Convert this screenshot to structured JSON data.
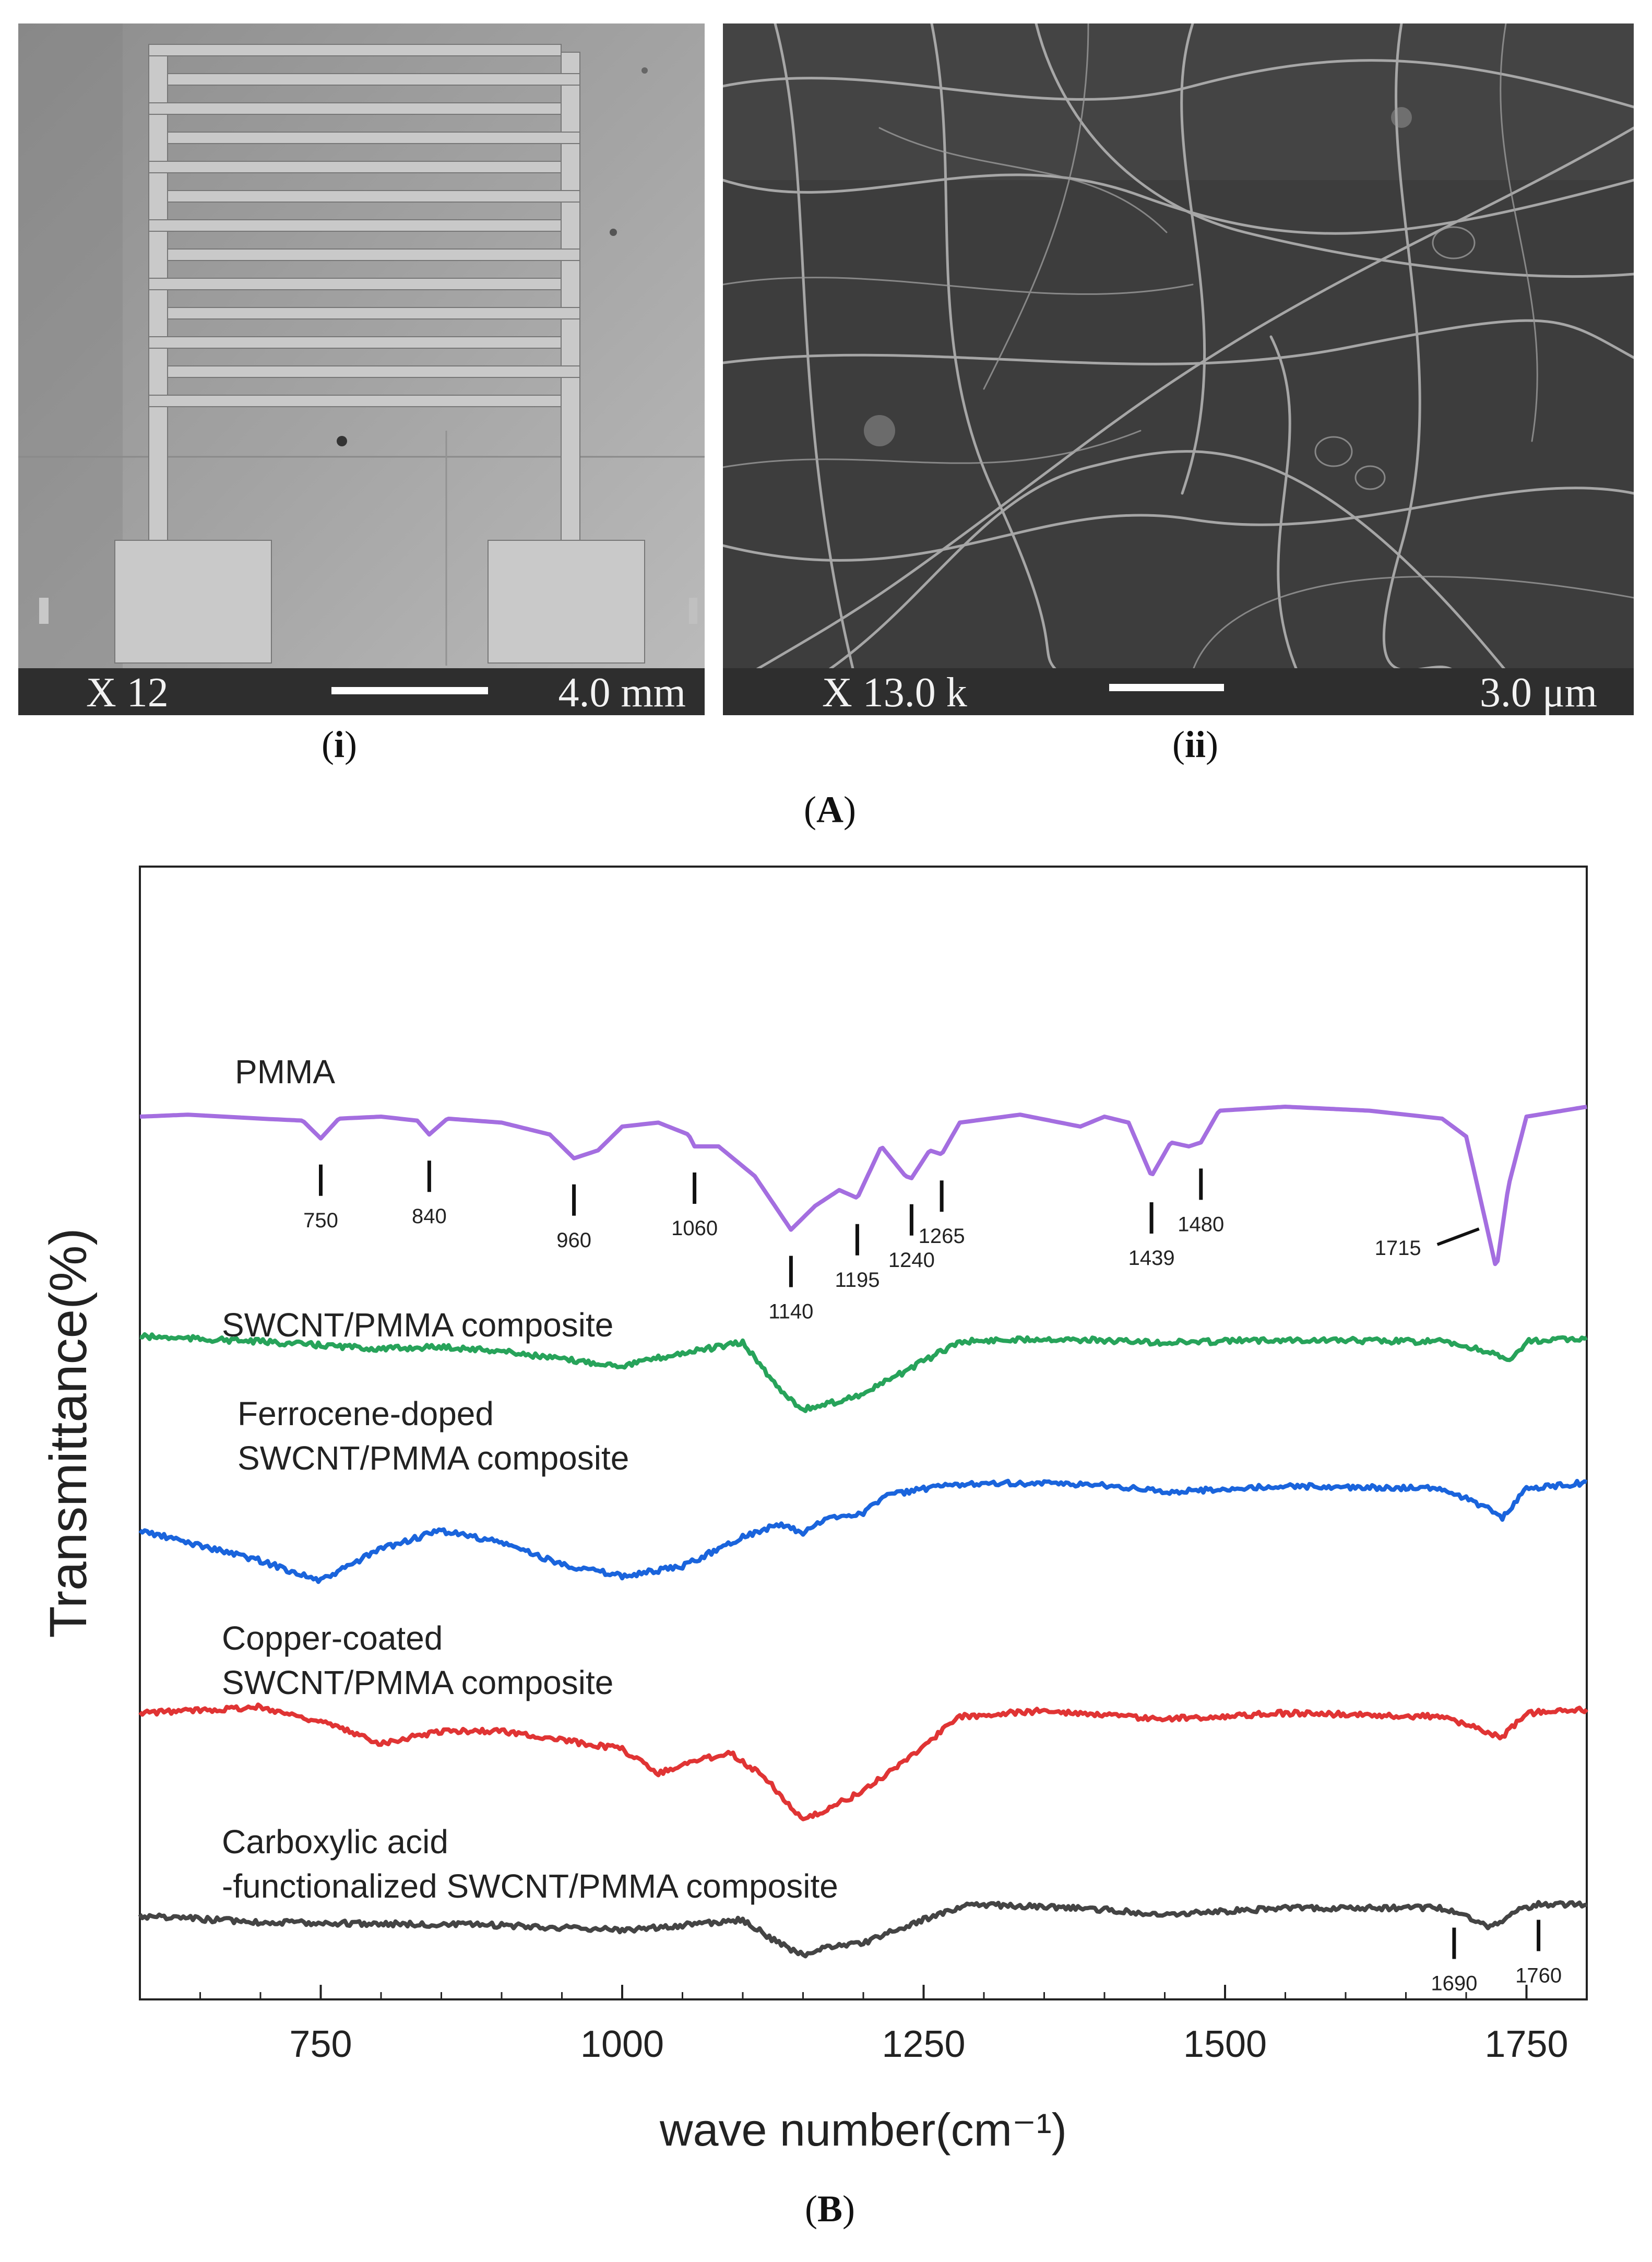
{
  "panel_A": {
    "label_prefix": "(",
    "label_letter": "A",
    "label_suffix": ")",
    "left_image": {
      "magnification": "X  12",
      "scale_text": "4.0 mm",
      "caption_letter": "i"
    },
    "right_image": {
      "magnification": "X 13.0 k",
      "scale_text": "3.0 μm",
      "caption_letter": "ii"
    }
  },
  "panel_B": {
    "label_letter": "B"
  },
  "chart_data": {
    "type": "line",
    "title": "",
    "xlabel": "wave number(cm⁻¹)",
    "ylabel": "Transmittance(%)",
    "xlim": [
      600,
      1800
    ],
    "xticks": [
      750,
      1000,
      1250,
      1500,
      1750
    ],
    "grid": false,
    "series": [
      {
        "name": "PMMA",
        "label_lines": [
          "PMMA"
        ],
        "color": "#a46ee0",
        "points": [
          [
            600,
            0.05
          ],
          [
            640,
            0.04
          ],
          [
            700,
            0.06
          ],
          [
            735,
            0.07
          ],
          [
            750,
            0.16
          ],
          [
            765,
            0.06
          ],
          [
            800,
            0.05
          ],
          [
            830,
            0.07
          ],
          [
            840,
            0.14
          ],
          [
            855,
            0.06
          ],
          [
            900,
            0.08
          ],
          [
            940,
            0.14
          ],
          [
            960,
            0.26
          ],
          [
            980,
            0.22
          ],
          [
            1000,
            0.1
          ],
          [
            1030,
            0.08
          ],
          [
            1055,
            0.14
          ],
          [
            1060,
            0.2
          ],
          [
            1080,
            0.2
          ],
          [
            1110,
            0.35
          ],
          [
            1140,
            0.62
          ],
          [
            1160,
            0.5
          ],
          [
            1180,
            0.42
          ],
          [
            1195,
            0.46
          ],
          [
            1215,
            0.2
          ],
          [
            1235,
            0.35
          ],
          [
            1240,
            0.36
          ],
          [
            1255,
            0.22
          ],
          [
            1265,
            0.24
          ],
          [
            1280,
            0.08
          ],
          [
            1330,
            0.04
          ],
          [
            1380,
            0.1
          ],
          [
            1400,
            0.05
          ],
          [
            1420,
            0.08
          ],
          [
            1439,
            0.35
          ],
          [
            1455,
            0.18
          ],
          [
            1470,
            0.2
          ],
          [
            1480,
            0.18
          ],
          [
            1495,
            0.02
          ],
          [
            1550,
            0.0
          ],
          [
            1620,
            0.02
          ],
          [
            1680,
            0.06
          ],
          [
            1700,
            0.15
          ],
          [
            1715,
            0.55
          ],
          [
            1725,
            0.82
          ],
          [
            1735,
            0.4
          ],
          [
            1750,
            0.05
          ],
          [
            1800,
            0.0
          ]
        ],
        "peaks": [
          {
            "wavenumber": 750,
            "label": "750"
          },
          {
            "wavenumber": 840,
            "label": "840"
          },
          {
            "wavenumber": 960,
            "label": "960"
          },
          {
            "wavenumber": 1060,
            "label": "1060"
          },
          {
            "wavenumber": 1140,
            "label": "1140"
          },
          {
            "wavenumber": 1195,
            "label": "1195"
          },
          {
            "wavenumber": 1240,
            "label": "1240"
          },
          {
            "wavenumber": 1265,
            "label": "1265"
          },
          {
            "wavenumber": 1439,
            "label": "1439"
          },
          {
            "wavenumber": 1480,
            "label": "1480"
          },
          {
            "wavenumber": 1715,
            "label": "1715"
          }
        ]
      },
      {
        "name": "SWCNT/PMMA composite",
        "label_lines": [
          "SWCNT/PMMA composite"
        ],
        "color": "#27a35a",
        "points": [
          [
            600,
            0.0
          ],
          [
            700,
            0.05
          ],
          [
            800,
            0.12
          ],
          [
            850,
            0.1
          ],
          [
            900,
            0.14
          ],
          [
            950,
            0.22
          ],
          [
            1000,
            0.28
          ],
          [
            1050,
            0.16
          ],
          [
            1100,
            0.06
          ],
          [
            1130,
            0.5
          ],
          [
            1150,
            0.7
          ],
          [
            1170,
            0.65
          ],
          [
            1200,
            0.55
          ],
          [
            1240,
            0.3
          ],
          [
            1280,
            0.05
          ],
          [
            1350,
            0.02
          ],
          [
            1450,
            0.06
          ],
          [
            1550,
            0.03
          ],
          [
            1680,
            0.05
          ],
          [
            1720,
            0.15
          ],
          [
            1735,
            0.25
          ],
          [
            1750,
            0.05
          ],
          [
            1800,
            0.02
          ]
        ],
        "peaks": []
      },
      {
        "name": "Ferrocene-doped SWCNT/PMMA composite",
        "label_lines": [
          "Ferrocene-doped",
          "SWCNT/PMMA composite"
        ],
        "color": "#1a64dc",
        "points": [
          [
            600,
            0.4
          ],
          [
            700,
            0.65
          ],
          [
            750,
            0.82
          ],
          [
            800,
            0.55
          ],
          [
            850,
            0.4
          ],
          [
            900,
            0.5
          ],
          [
            950,
            0.68
          ],
          [
            1000,
            0.78
          ],
          [
            1050,
            0.7
          ],
          [
            1100,
            0.45
          ],
          [
            1130,
            0.35
          ],
          [
            1150,
            0.42
          ],
          [
            1170,
            0.3
          ],
          [
            1200,
            0.25
          ],
          [
            1220,
            0.1
          ],
          [
            1260,
            0.04
          ],
          [
            1300,
            0.0
          ],
          [
            1400,
            0.02
          ],
          [
            1450,
            0.08
          ],
          [
            1550,
            0.03
          ],
          [
            1680,
            0.05
          ],
          [
            1715,
            0.2
          ],
          [
            1730,
            0.3
          ],
          [
            1750,
            0.05
          ],
          [
            1800,
            0.0
          ]
        ],
        "peaks": []
      },
      {
        "name": "Copper-coated SWCNT/PMMA composite",
        "label_lines": [
          "Copper-coated",
          "SWCNT/PMMA composite"
        ],
        "color": "#e03434",
        "points": [
          [
            600,
            0.05
          ],
          [
            700,
            0.0
          ],
          [
            750,
            0.12
          ],
          [
            800,
            0.3
          ],
          [
            850,
            0.2
          ],
          [
            900,
            0.2
          ],
          [
            1000,
            0.35
          ],
          [
            1030,
            0.55
          ],
          [
            1060,
            0.45
          ],
          [
            1090,
            0.38
          ],
          [
            1120,
            0.6
          ],
          [
            1150,
            0.95
          ],
          [
            1170,
            0.85
          ],
          [
            1200,
            0.7
          ],
          [
            1240,
            0.4
          ],
          [
            1280,
            0.08
          ],
          [
            1350,
            0.03
          ],
          [
            1450,
            0.1
          ],
          [
            1550,
            0.05
          ],
          [
            1680,
            0.08
          ],
          [
            1730,
            0.25
          ],
          [
            1750,
            0.05
          ],
          [
            1800,
            0.02
          ]
        ],
        "peaks": []
      },
      {
        "name": "Carboxylic acid -functionalized SWCNT/PMMA composite",
        "label_lines": [
          "Carboxylic acid",
          "-functionalized SWCNT/PMMA composite"
        ],
        "color": "#444444",
        "points": [
          [
            600,
            0.2
          ],
          [
            700,
            0.28
          ],
          [
            800,
            0.3
          ],
          [
            900,
            0.32
          ],
          [
            1000,
            0.38
          ],
          [
            1050,
            0.32
          ],
          [
            1100,
            0.25
          ],
          [
            1130,
            0.55
          ],
          [
            1150,
            0.7
          ],
          [
            1170,
            0.6
          ],
          [
            1200,
            0.55
          ],
          [
            1240,
            0.3
          ],
          [
            1290,
            0.05
          ],
          [
            1400,
            0.12
          ],
          [
            1450,
            0.18
          ],
          [
            1550,
            0.1
          ],
          [
            1680,
            0.1
          ],
          [
            1700,
            0.2
          ],
          [
            1720,
            0.35
          ],
          [
            1740,
            0.15
          ],
          [
            1760,
            0.05
          ],
          [
            1800,
            0.05
          ]
        ],
        "peaks": [
          {
            "wavenumber": 1690,
            "label": "1690"
          },
          {
            "wavenumber": 1760,
            "label": "1760"
          }
        ]
      }
    ]
  }
}
